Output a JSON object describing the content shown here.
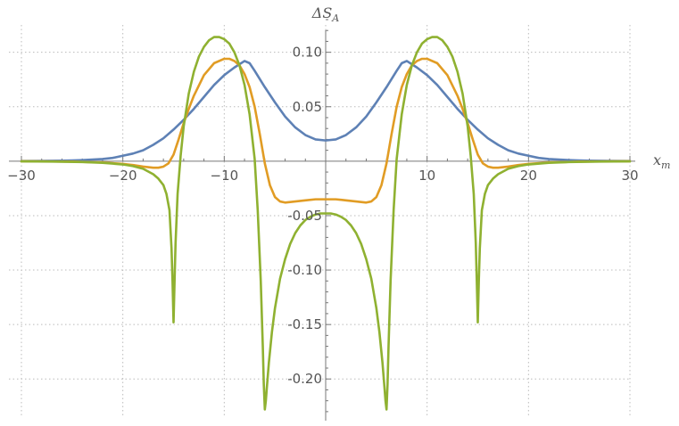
{
  "chart_data": {
    "type": "line",
    "title": "",
    "xlabel": {
      "base": "x",
      "sub": "m"
    },
    "ylabel": {
      "base": "ΔS",
      "sub": "A"
    },
    "xlim": [
      -30,
      30
    ],
    "ylim": [
      -0.235,
      0.13
    ],
    "grid": true,
    "x_ticks": [
      -30,
      -20,
      -10,
      10,
      20,
      30
    ],
    "x_tick_labels": [
      "−30",
      "−20",
      "−10",
      "10",
      "20",
      "30"
    ],
    "x_minor_step": 2,
    "y_ticks": [
      0.1,
      0.05,
      -0.05,
      -0.1,
      -0.15,
      -0.2
    ],
    "y_tick_labels": [
      "0.10",
      "0.05",
      "-0.05",
      "-0.10",
      "-0.15",
      "-0.20"
    ],
    "y_minor_step": 0.01,
    "x_grid": [
      -30,
      -20,
      -10,
      0,
      10,
      20,
      30
    ],
    "y_grid": [
      0.1,
      0.05,
      -0.05,
      -0.1,
      -0.15,
      -0.2
    ],
    "series": [
      {
        "color": "#5E81B5",
        "x": [
          0,
          1,
          2,
          3,
          4,
          5,
          6,
          7,
          7.5,
          8,
          9,
          10,
          11,
          12,
          13,
          14,
          15,
          16,
          17,
          18,
          19,
          20,
          21,
          22,
          23,
          24,
          25,
          26,
          28,
          30
        ],
        "y": [
          0.019,
          0.02,
          0.024,
          0.031,
          0.041,
          0.054,
          0.068,
          0.083,
          0.09,
          0.092,
          0.086,
          0.079,
          0.07,
          0.059,
          0.048,
          0.038,
          0.029,
          0.021,
          0.015,
          0.01,
          0.007,
          0.005,
          0.003,
          0.002,
          0.0015,
          0.001,
          0.0007,
          0.0005,
          0.0002,
          0.0001
        ]
      },
      {
        "color": "#E19C24",
        "x": [
          0,
          1,
          2,
          3,
          4,
          4.5,
          5,
          5.5,
          6,
          6.5,
          7,
          7.5,
          8,
          8.5,
          9,
          9.5,
          10,
          11,
          12,
          13,
          13.5,
          14,
          14.5,
          15,
          15.5,
          16,
          16.5,
          17,
          18,
          19,
          20,
          22,
          25,
          30
        ],
        "y": [
          -0.035,
          -0.035,
          -0.036,
          -0.037,
          -0.038,
          -0.037,
          -0.033,
          -0.022,
          -0.002,
          0.025,
          0.05,
          0.068,
          0.08,
          0.088,
          0.092,
          0.094,
          0.094,
          0.09,
          0.079,
          0.06,
          0.048,
          0.035,
          0.02,
          0.006,
          -0.002,
          -0.005,
          -0.006,
          -0.006,
          -0.005,
          -0.0035,
          -0.0025,
          -0.0012,
          -0.0004,
          -0.0001
        ]
      },
      {
        "color": "#8FB131",
        "x": [
          0,
          0.5,
          1,
          1.5,
          2,
          2.5,
          3,
          3.5,
          4,
          4.5,
          5,
          5.3,
          5.6,
          5.8,
          5.9,
          6.0,
          6.1,
          6.2,
          6.4,
          6.7,
          7,
          7.5,
          8,
          8.5,
          9,
          9.5,
          10,
          10.5,
          11,
          11.5,
          12,
          12.5,
          13,
          13.5,
          14,
          14.3,
          14.6,
          14.8,
          14.9,
          15.0,
          15.1,
          15.2,
          15.4,
          15.7,
          16,
          16.5,
          17,
          18,
          19,
          20,
          22,
          24,
          27,
          30
        ],
        "y": [
          -0.048,
          -0.048,
          -0.049,
          -0.051,
          -0.054,
          -0.059,
          -0.066,
          -0.076,
          -0.09,
          -0.108,
          -0.135,
          -0.157,
          -0.185,
          -0.208,
          -0.22,
          -0.228,
          -0.205,
          -0.17,
          -0.11,
          -0.045,
          0.002,
          0.043,
          0.07,
          0.088,
          0.1,
          0.108,
          0.112,
          0.114,
          0.114,
          0.111,
          0.105,
          0.096,
          0.082,
          0.062,
          0.032,
          0.005,
          -0.03,
          -0.075,
          -0.11,
          -0.148,
          -0.11,
          -0.08,
          -0.045,
          -0.03,
          -0.022,
          -0.016,
          -0.012,
          -0.007,
          -0.0045,
          -0.003,
          -0.0015,
          -0.0008,
          -0.0004,
          -0.0002
        ]
      }
    ]
  }
}
